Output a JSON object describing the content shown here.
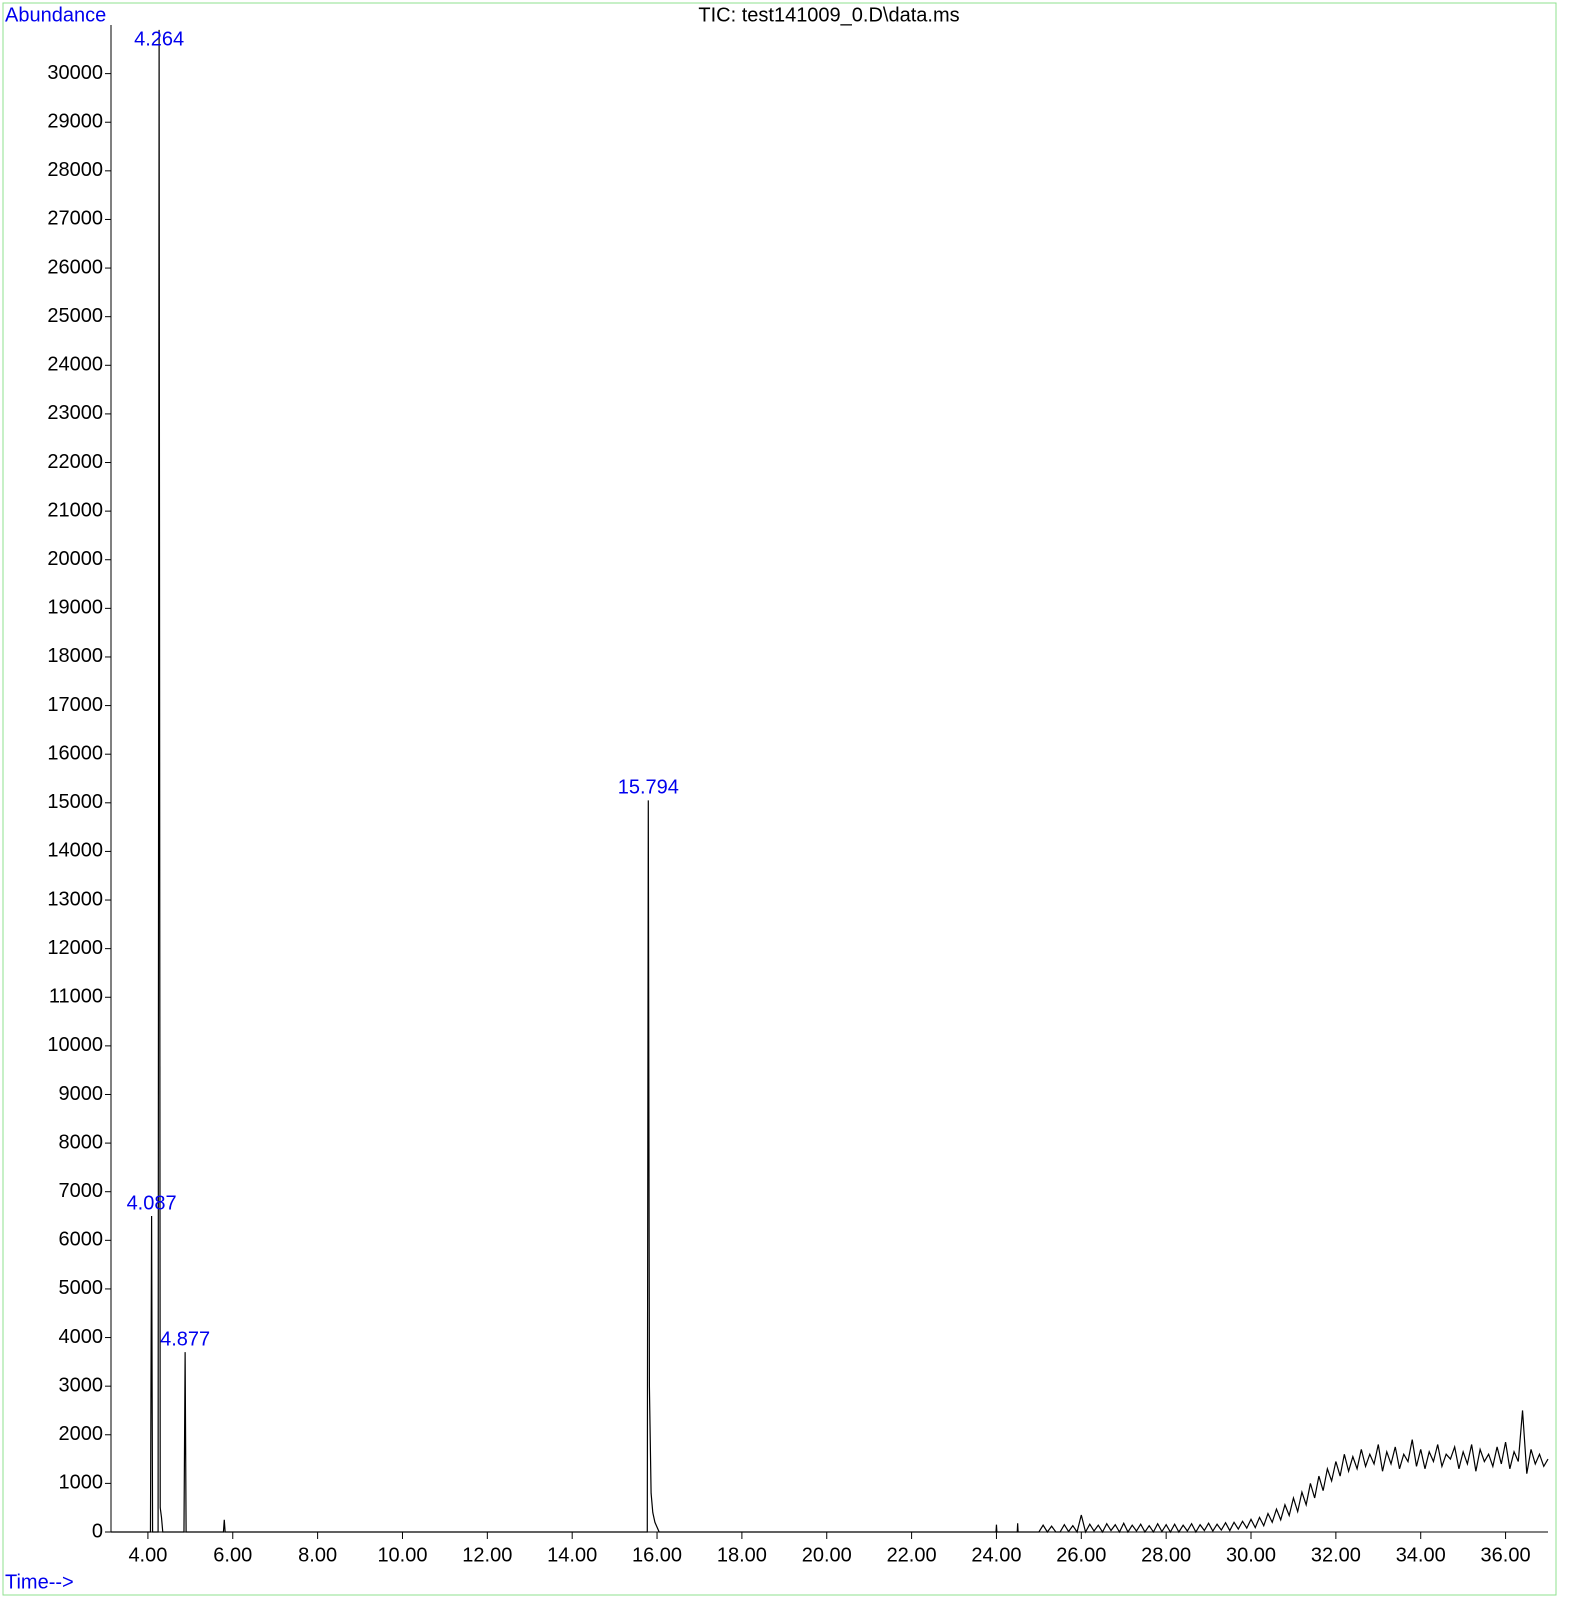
{
  "chart_data": {
    "type": "line",
    "title": "TIC: test141009_0.D\\data.ms",
    "y_label": "Abundance",
    "x_label": "Time-->",
    "color": "#000000",
    "label_color": "#0000ee",
    "xlim": [
      3.13,
      37.0
    ],
    "ylim": [
      0,
      31000
    ],
    "xticks": [
      {
        "value": 4,
        "label": "4.00"
      },
      {
        "value": 6,
        "label": "6.00"
      },
      {
        "value": 8,
        "label": "8.00"
      },
      {
        "value": 10,
        "label": "10.00"
      },
      {
        "value": 12,
        "label": "12.00"
      },
      {
        "value": 14,
        "label": "14.00"
      },
      {
        "value": 16,
        "label": "16.00"
      },
      {
        "value": 18,
        "label": "18.00"
      },
      {
        "value": 20,
        "label": "20.00"
      },
      {
        "value": 22,
        "label": "22.00"
      },
      {
        "value": 24,
        "label": "24.00"
      },
      {
        "value": 26,
        "label": "26.00"
      },
      {
        "value": 28,
        "label": "28.00"
      },
      {
        "value": 30,
        "label": "30.00"
      },
      {
        "value": 32,
        "label": "32.00"
      },
      {
        "value": 34,
        "label": "34.00"
      },
      {
        "value": 36,
        "label": "36.00"
      }
    ],
    "yticks": [
      0,
      1000,
      2000,
      3000,
      4000,
      5000,
      6000,
      7000,
      8000,
      9000,
      10000,
      11000,
      12000,
      13000,
      14000,
      15000,
      16000,
      17000,
      18000,
      19000,
      20000,
      21000,
      22000,
      23000,
      24000,
      25000,
      26000,
      27000,
      28000,
      29000,
      30000
    ],
    "x": [
      3.13,
      4.0,
      4.06,
      4.087,
      4.11,
      4.2,
      4.24,
      4.264,
      4.29,
      4.32,
      4.35,
      4.8,
      4.85,
      4.877,
      4.9,
      4.95,
      5.78,
      5.8,
      5.82,
      15.7,
      15.77,
      15.794,
      15.82,
      15.86,
      15.9,
      15.95,
      16.0,
      16.05,
      23.99,
      24.0,
      24.01,
      24.49,
      24.5,
      24.51,
      24.9,
      25.0,
      25.1,
      25.2,
      25.3,
      25.4,
      25.5,
      25.6,
      25.7,
      25.8,
      25.9,
      26.0,
      26.1,
      26.2,
      26.3,
      26.4,
      26.5,
      26.6,
      26.7,
      26.8,
      26.9,
      27.0,
      27.1,
      27.2,
      27.3,
      27.4,
      27.5,
      27.6,
      27.7,
      27.8,
      27.9,
      28.0,
      28.1,
      28.2,
      28.3,
      28.4,
      28.5,
      28.6,
      28.7,
      28.8,
      28.9,
      29.0,
      29.1,
      29.2,
      29.3,
      29.4,
      29.5,
      29.6,
      29.7,
      29.8,
      29.9,
      30.0,
      30.1,
      30.2,
      30.3,
      30.4,
      30.5,
      30.6,
      30.7,
      30.8,
      30.9,
      31.0,
      31.1,
      31.2,
      31.3,
      31.4,
      31.5,
      31.6,
      31.7,
      31.8,
      31.9,
      32.0,
      32.1,
      32.2,
      32.3,
      32.4,
      32.5,
      32.6,
      32.7,
      32.8,
      32.9,
      33.0,
      33.1,
      33.2,
      33.3,
      33.4,
      33.5,
      33.6,
      33.7,
      33.8,
      33.9,
      34.0,
      34.1,
      34.2,
      34.3,
      34.4,
      34.5,
      34.6,
      34.7,
      34.8,
      34.9,
      35.0,
      35.1,
      35.2,
      35.3,
      35.4,
      35.5,
      35.6,
      35.7,
      35.8,
      35.9,
      36.0,
      36.1,
      36.2,
      36.3,
      36.4,
      36.5,
      36.6,
      36.7,
      36.8,
      36.9,
      37.0
    ],
    "values": [
      0,
      0,
      0,
      6500,
      0,
      0,
      0,
      30900,
      500,
      300,
      0,
      0,
      0,
      3700,
      0,
      0,
      0,
      250,
      0,
      0,
      0,
      15050,
      3000,
      800,
      400,
      200,
      100,
      0,
      0,
      150,
      0,
      0,
      180,
      0,
      0,
      0,
      140,
      0,
      120,
      0,
      0,
      150,
      10,
      130,
      0,
      350,
      0,
      160,
      20,
      140,
      0,
      170,
      30,
      150,
      0,
      180,
      0,
      140,
      20,
      160,
      0,
      130,
      0,
      170,
      10,
      150,
      0,
      160,
      0,
      140,
      20,
      170,
      0,
      150,
      30,
      180,
      20,
      160,
      40,
      190,
      30,
      200,
      60,
      220,
      80,
      260,
      90,
      300,
      130,
      380,
      200,
      470,
      250,
      560,
      340,
      700,
      420,
      820,
      560,
      1000,
      700,
      1150,
      850,
      1300,
      1050,
      1450,
      1150,
      1600,
      1250,
      1550,
      1300,
      1700,
      1350,
      1600,
      1400,
      1800,
      1250,
      1650,
      1400,
      1750,
      1300,
      1600,
      1450,
      1900,
      1350,
      1700,
      1300,
      1650,
      1450,
      1800,
      1350,
      1600,
      1500,
      1750,
      1300,
      1650,
      1400,
      1800,
      1250,
      1700,
      1450,
      1600,
      1350,
      1750,
      1400,
      1850,
      1300,
      1650,
      1450,
      2500,
      1200,
      1700,
      1400,
      1600,
      1350,
      1500
    ],
    "peak_labels": [
      {
        "label": "4.087",
        "x": 4.087,
        "y": 6500
      },
      {
        "label": "4.264",
        "x": 4.264,
        "y": 30900
      },
      {
        "label": "4.877",
        "x": 4.877,
        "y": 3700
      },
      {
        "label": "15.794",
        "x": 15.794,
        "y": 15050
      }
    ]
  }
}
